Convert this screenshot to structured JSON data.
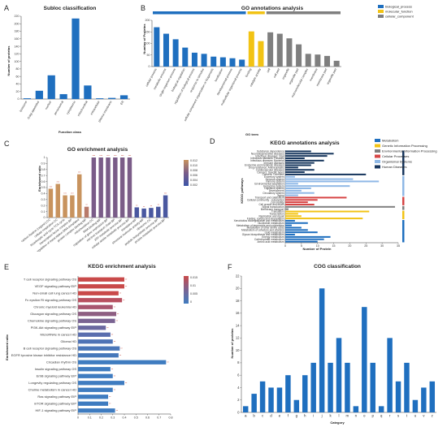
{
  "panels": {
    "A": {
      "label": "A",
      "title": "Subloc classification",
      "xlabel": "Function class",
      "ylabel": "Number of proteins",
      "color": "#1f6fbf",
      "ylim": [
        0,
        220
      ],
      "yticks": [
        0,
        20,
        40,
        60,
        80,
        100,
        120,
        140,
        160,
        180,
        200,
        220
      ],
      "categories": [
        "lysosome",
        "Golgi apparatus",
        "nuclear",
        "peroxisomal",
        "cytoplasmic",
        "mitochondrial",
        "extracellular",
        "plasma membrane",
        "ER"
      ],
      "values": [
        2,
        22,
        63,
        13,
        214,
        36,
        2,
        3,
        10
      ]
    },
    "B": {
      "label": "B",
      "title": "GO annotations analysis",
      "xlabel": "GO term",
      "ylabel": "Number of Proteins",
      "ylim": [
        0,
        200
      ],
      "yticks": [
        0,
        50,
        100,
        150,
        200
      ],
      "legend": [
        {
          "name": "biological_process",
          "color": "#1f6fbf"
        },
        {
          "name": "molecular_function",
          "color": "#f2c314"
        },
        {
          "name": "cellular_component",
          "color": "#7f7f7f"
        }
      ],
      "categories": [
        "cellular process",
        "metabolic process",
        "single-organism process",
        "biological regulation",
        "regulation of biological process",
        "response to stimulus",
        "cellular component organization or biogenesis",
        "localization",
        "developmental process",
        "multicellular organismal process",
        "binding",
        "catalytic activity",
        "cell",
        "cell part",
        "organelle",
        "organelle part",
        "macromolecular complex",
        "membrane",
        "membrane part",
        "organelle part"
      ],
      "groups": [
        "bp",
        "bp",
        "bp",
        "bp",
        "bp",
        "bp",
        "bp",
        "bp",
        "bp",
        "bp",
        "mf",
        "mf",
        "cc",
        "cc",
        "cc",
        "cc",
        "cc",
        "cc",
        "cc",
        "cc"
      ],
      "values": [
        170,
        142,
        118,
        82,
        60,
        55,
        43,
        40,
        36,
        30,
        152,
        110,
        148,
        142,
        122,
        96,
        55,
        52,
        46,
        25
      ]
    },
    "C": {
      "label": "C",
      "title": "GO enrichment analysis",
      "ylabel": "Enrichment ratio",
      "ylim": [
        0,
        1
      ],
      "yticks": [
        0,
        0.1,
        0.2,
        0.3,
        0.4,
        0.5,
        0.6,
        0.7,
        0.8,
        0.9,
        1
      ],
      "colorbar_ticks": [
        "0.012",
        "0.010",
        "0.008",
        "0.006",
        "0.004",
        "0.002"
      ],
      "colors": [
        "#c8935e",
        "#c8935e",
        "#c8935e",
        "#c8935e",
        "#c8935e",
        "#b87a6a",
        "#7a5c88",
        "#7a5c88",
        "#7a5c88",
        "#7a5c88",
        "#7a5c88",
        "#7a5c88",
        "#4a58a0",
        "#4a58a0",
        "#4a58a0",
        "#4a58a0",
        "#4a58a0"
      ],
      "categories": [
        "carbon fixation (organic) CC",
        "cellular respiration CC",
        "tricarboxylic acid cycle TCA cycle",
        "transcription factor complex BP",
        "regulation of transcription DNA-templated",
        "protein complex binding MF",
        "mitochondrion CC",
        "RNA binding MF",
        "regulation of gene expression BP",
        "electron transport chain BP",
        "ATP metabolic process BP",
        "cellular amide metabolic process BP",
        "translation MF",
        "structural molecule activity MF",
        "ribosome CC",
        "peptide biosynthetic process BP",
        "protein metabolic process BP"
      ],
      "values": [
        0.48,
        0.56,
        0.37,
        0.37,
        0.72,
        0.18,
        1.0,
        1.0,
        1.0,
        1.0,
        1.0,
        1.0,
        0.17,
        0.15,
        0.16,
        0.18,
        0.37
      ],
      "marks": [
        "***",
        "***",
        "***",
        "***",
        "***",
        "**",
        "***",
        "***",
        "***",
        "***",
        "***",
        "***",
        "**",
        "**",
        "**",
        "**",
        "***"
      ]
    },
    "D": {
      "label": "D",
      "title": "KEGG annotations analysis",
      "xlabel": "Number of Protein",
      "ylabel": "KEGG pathways",
      "xlim": [
        0,
        35
      ],
      "xticks": [
        0,
        5,
        10,
        15,
        20,
        25,
        30,
        35
      ],
      "legend": [
        {
          "name": "Metabolism",
          "color": "#1f6fbf"
        },
        {
          "name": "Genetic Information Processing",
          "color": "#f2c314"
        },
        {
          "name": "Environmental Information Processing",
          "color": "#7f7f7f"
        },
        {
          "name": "Cellular Processes",
          "color": "#d64545"
        },
        {
          "name": "Organismal Systems",
          "color": "#8fb8e6"
        },
        {
          "name": "Human Diseases",
          "color": "#17365d"
        }
      ],
      "categories": [
        "Substance dependence",
        "Neurodegenerative diseases",
        "Infectious diseases: Viral",
        "Infectious diseases: Parasitic",
        "Infectious diseases: Bacterial",
        "Immune diseases",
        "Endocrine and metabolic diseases",
        "Drug resistance: Antineoplastic",
        "Cardiovascular diseases",
        "Cancers: Specific types",
        "Cancers: Overview",
        "Excretory system",
        "Nervous system",
        "Immune system",
        "Environmental adaptation",
        "Endocrine system",
        "Digestive system",
        "Development",
        "Circulatory system",
        "Aging",
        "Transport and catabolism",
        "Cellular community - eukaryotes",
        "Cell motility",
        "Cell growth and death",
        "Signal transduction",
        "Membrane transport",
        "Translation",
        "Transcription",
        "Replication and repair",
        "Folding, sorting and degradation",
        "Xenobiotics biodegradation and metabolism",
        "Nucleotide metabolism",
        "Metabolism of terpenoids and polyketides",
        "Metabolism of other amino acids",
        "Metabolism of cofactors and vitamins",
        "Lipid metabolism",
        "Glycan biosynthesis and metabolism",
        "Energy metabolism",
        "Carbohydrate metabolism",
        "Amino acid metabolism"
      ],
      "groups": [
        "hd",
        "hd",
        "hd",
        "hd",
        "hd",
        "hd",
        "hd",
        "hd",
        "hd",
        "hd",
        "hd",
        "os",
        "os",
        "os",
        "os",
        "os",
        "os",
        "os",
        "os",
        "os",
        "cp",
        "cp",
        "cp",
        "cp",
        "ei",
        "ei",
        "gi",
        "gi",
        "gi",
        "gi",
        "m",
        "m",
        "m",
        "m",
        "m",
        "m",
        "m",
        "m",
        "m",
        "m"
      ],
      "values": [
        8,
        15,
        13,
        6,
        12,
        9,
        8,
        4,
        9,
        6,
        25,
        3,
        21,
        29,
        4,
        20,
        8,
        5,
        9,
        4,
        19,
        10,
        7,
        9,
        34,
        1,
        26,
        4,
        5,
        24,
        3,
        7,
        2,
        5,
        7,
        10,
        3,
        14,
        12,
        10
      ]
    },
    "E": {
      "label": "E",
      "title": "KEGG enrichment analysis",
      "ylabel": "Enrichment ratio",
      "xlim": [
        0,
        0.8
      ],
      "xticks": [
        0,
        0.1,
        0.2,
        0.3,
        0.4,
        0.5,
        0.6,
        0.7,
        0.8
      ],
      "colorbar_ticks": [
        "0.015",
        "0.01",
        "0.005",
        "0"
      ],
      "categories": [
        "T cell receptor signaling pathway OS",
        "VEGF signaling pathway EIP",
        "Non-small cell lung cancer HD",
        "Fc epsilon RI signaling pathway OS",
        "Chronic myeloid leukemia HD",
        "Glucagon signaling pathway OS",
        "Chemokine signaling pathway OS",
        "PI3K-Akt signaling pathway EIP",
        "MicroRNAs in cancer HD",
        "Glioma HD",
        "B cell receptor signaling pathway OS",
        "EGFR tyrosine kinase inhibitor resistance HD",
        "Circadian rhythm OS",
        "Insulin signaling pathway OS",
        "ErbB signaling pathway EIP",
        "Longevity regulating pathway OS",
        "Choline metabolism in cancer HD",
        "Ras signaling pathway EIP",
        "mTOR signaling pathway EIP",
        "HIF-1 signaling pathway EIP"
      ],
      "colors": [
        "#c94a4a",
        "#c94a4a",
        "#c94a4a",
        "#b85060",
        "#a85670",
        "#8e5e82",
        "#7a6392",
        "#6a68a0",
        "#5a6eae",
        "#4f73b5",
        "#4a76b8",
        "#4678ba",
        "#3f7cc0",
        "#3f7cc0",
        "#3f7cc0",
        "#3f7cc0",
        "#3f7cc0",
        "#3f7cc0",
        "#3f7cc0",
        "#3f7cc0"
      ],
      "values": [
        0.4,
        0.4,
        0.35,
        0.38,
        0.3,
        0.33,
        0.32,
        0.24,
        0.28,
        0.3,
        0.36,
        0.35,
        0.76,
        0.28,
        0.3,
        0.4,
        0.3,
        0.26,
        0.26,
        0.32
      ],
      "marks": [
        "**",
        "**",
        "**",
        "**",
        "**",
        "**",
        "**",
        "**",
        "**",
        "**",
        "**",
        "**",
        "**",
        "**",
        "**",
        "**",
        "**",
        "**",
        "**",
        "**"
      ]
    },
    "F": {
      "label": "F",
      "title": "COG classification",
      "xlabel": "Category",
      "ylabel": "Number of proteins",
      "color": "#1f6fbf",
      "ylim": [
        0,
        22
      ],
      "yticks": [
        0,
        2,
        4,
        6,
        8,
        10,
        12,
        14,
        16,
        18,
        20,
        22
      ],
      "categories": [
        "a",
        "b",
        "c",
        "d",
        "e",
        "f",
        "g",
        "h",
        "i",
        "j",
        "k",
        "l",
        "m",
        "n",
        "o",
        "p",
        "q",
        "r",
        "s",
        "t",
        "u",
        "v",
        "z"
      ],
      "values": [
        1,
        3,
        5,
        4,
        4,
        6,
        2,
        6,
        8,
        20,
        8,
        12,
        8,
        1,
        17,
        8,
        1,
        12,
        5,
        8,
        2,
        4,
        5
      ]
    }
  },
  "chart_data": [
    {
      "type": "bar",
      "panel": "A",
      "title": "Subloc classification",
      "xlabel": "Function class",
      "ylabel": "Number of proteins",
      "categories": [
        "lysosome",
        "Golgi apparatus",
        "nuclear",
        "peroxisomal",
        "cytoplasmic",
        "mitochondrial",
        "extracellular",
        "plasma membrane",
        "ER"
      ],
      "values": [
        2,
        22,
        63,
        13,
        214,
        36,
        2,
        3,
        10
      ],
      "ylim": [
        0,
        220
      ]
    },
    {
      "type": "bar",
      "panel": "B",
      "title": "GO annotations analysis",
      "xlabel": "GO term",
      "ylabel": "Number of Proteins",
      "ylim": [
        0,
        200
      ],
      "legend": "top-right"
    },
    {
      "type": "bar",
      "panel": "C",
      "title": "GO enrichment analysis",
      "ylabel": "Enrichment ratio",
      "ylim": [
        0,
        1
      ]
    },
    {
      "type": "bar",
      "panel": "D",
      "title": "KEGG annotations analysis",
      "xlabel": "Number of Protein",
      "ylabel": "KEGG pathways",
      "xlim": [
        0,
        35
      ],
      "legend": "top-right"
    },
    {
      "type": "bar",
      "panel": "E",
      "title": "KEGG enrichment analysis",
      "ylabel": "Enrichment ratio",
      "xlim": [
        0,
        0.8
      ]
    },
    {
      "type": "bar",
      "panel": "F",
      "title": "COG classification",
      "xlabel": "Category",
      "ylabel": "Number of proteins",
      "ylim": [
        0,
        22
      ]
    }
  ]
}
